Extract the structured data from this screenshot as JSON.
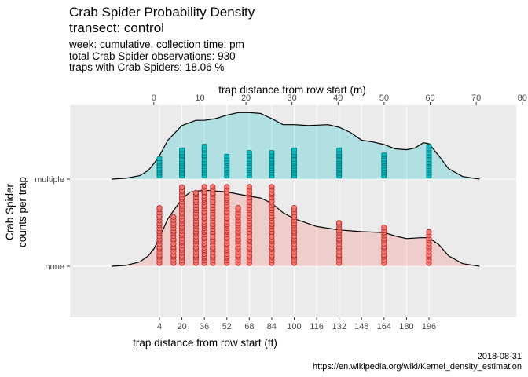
{
  "chart_data": {
    "type": "ridgeline-density-with-points",
    "title": [
      "Crab Spider Probability Density",
      "transect: control"
    ],
    "subtitle": [
      "week: cumulative, collection time: pm",
      "total Crab Spider observations: 930",
      "traps with Crab Spiders: 18.06 %"
    ],
    "caption": [
      "2018-08-31",
      "https://en.wikipedia.org/wiki/Kernel_density_estimation"
    ],
    "xlabel": "trap distance from row start (ft)",
    "x2label": "trap distance from row start (m)",
    "ylabel": [
      "Crab Spider",
      "counts per trap"
    ],
    "xlim": [
      -30,
      240
    ],
    "x_ticks": [
      4,
      20,
      36,
      52,
      68,
      84,
      100,
      116,
      132,
      148,
      164,
      180,
      196
    ],
    "x2_ticks": [
      0,
      10,
      20,
      30,
      40,
      50,
      60,
      70,
      80
    ],
    "categories": [
      "none",
      "multiple"
    ],
    "grid": true,
    "series": [
      {
        "name": "none",
        "color": "#F8766D",
        "stroke": "#B22222",
        "fill_opacity": 0.25,
        "density": [
          [
            -30,
            0.0
          ],
          [
            -20,
            0.01
          ],
          [
            -10,
            0.05
          ],
          [
            -4,
            0.12
          ],
          [
            0,
            0.2
          ],
          [
            4,
            0.33
          ],
          [
            10,
            0.55
          ],
          [
            20,
            0.78
          ],
          [
            26,
            0.86
          ],
          [
            36,
            0.88
          ],
          [
            52,
            0.86
          ],
          [
            68,
            0.81
          ],
          [
            76,
            0.79
          ],
          [
            84,
            0.73
          ],
          [
            92,
            0.62
          ],
          [
            100,
            0.55
          ],
          [
            116,
            0.46
          ],
          [
            132,
            0.42
          ],
          [
            148,
            0.4
          ],
          [
            164,
            0.39
          ],
          [
            172,
            0.35
          ],
          [
            180,
            0.32
          ],
          [
            190,
            0.33
          ],
          [
            196,
            0.33
          ],
          [
            203,
            0.25
          ],
          [
            210,
            0.12
          ],
          [
            220,
            0.03
          ],
          [
            232,
            0.0
          ]
        ],
        "points": [
          {
            "x": 4,
            "n": 22
          },
          {
            "x": 14,
            "n": 18
          },
          {
            "x": 20,
            "n": 32
          },
          {
            "x": 30,
            "n": 28
          },
          {
            "x": 36,
            "n": 36
          },
          {
            "x": 42,
            "n": 30
          },
          {
            "x": 52,
            "n": 36
          },
          {
            "x": 60,
            "n": 22
          },
          {
            "x": 68,
            "n": 30
          },
          {
            "x": 84,
            "n": 30
          },
          {
            "x": 100,
            "n": 22
          },
          {
            "x": 132,
            "n": 16
          },
          {
            "x": 164,
            "n": 14
          },
          {
            "x": 196,
            "n": 12
          }
        ]
      },
      {
        "name": "multiple",
        "color": "#00BFC4",
        "stroke": "#006D70",
        "fill_opacity": 0.25,
        "density": [
          [
            -30,
            0.0
          ],
          [
            -20,
            0.01
          ],
          [
            -10,
            0.04
          ],
          [
            -4,
            0.1
          ],
          [
            0,
            0.18
          ],
          [
            4,
            0.27
          ],
          [
            10,
            0.45
          ],
          [
            20,
            0.62
          ],
          [
            30,
            0.68
          ],
          [
            36,
            0.68
          ],
          [
            44,
            0.7
          ],
          [
            52,
            0.74
          ],
          [
            60,
            0.77
          ],
          [
            68,
            0.77
          ],
          [
            76,
            0.76
          ],
          [
            84,
            0.7
          ],
          [
            92,
            0.63
          ],
          [
            100,
            0.63
          ],
          [
            110,
            0.62
          ],
          [
            124,
            0.63
          ],
          [
            132,
            0.6
          ],
          [
            140,
            0.54
          ],
          [
            148,
            0.45
          ],
          [
            156,
            0.43
          ],
          [
            164,
            0.4
          ],
          [
            172,
            0.35
          ],
          [
            180,
            0.34
          ],
          [
            186,
            0.36
          ],
          [
            192,
            0.42
          ],
          [
            196,
            0.41
          ],
          [
            203,
            0.27
          ],
          [
            210,
            0.12
          ],
          [
            220,
            0.03
          ],
          [
            232,
            0.0
          ]
        ],
        "points": [
          {
            "x": 4,
            "n": 8
          },
          {
            "x": 20,
            "n": 12
          },
          {
            "x": 36,
            "n": 14
          },
          {
            "x": 52,
            "n": 9
          },
          {
            "x": 68,
            "n": 11
          },
          {
            "x": 84,
            "n": 11
          },
          {
            "x": 100,
            "n": 12
          },
          {
            "x": 132,
            "n": 12
          },
          {
            "x": 164,
            "n": 10
          },
          {
            "x": 196,
            "n": 14
          }
        ]
      }
    ]
  }
}
